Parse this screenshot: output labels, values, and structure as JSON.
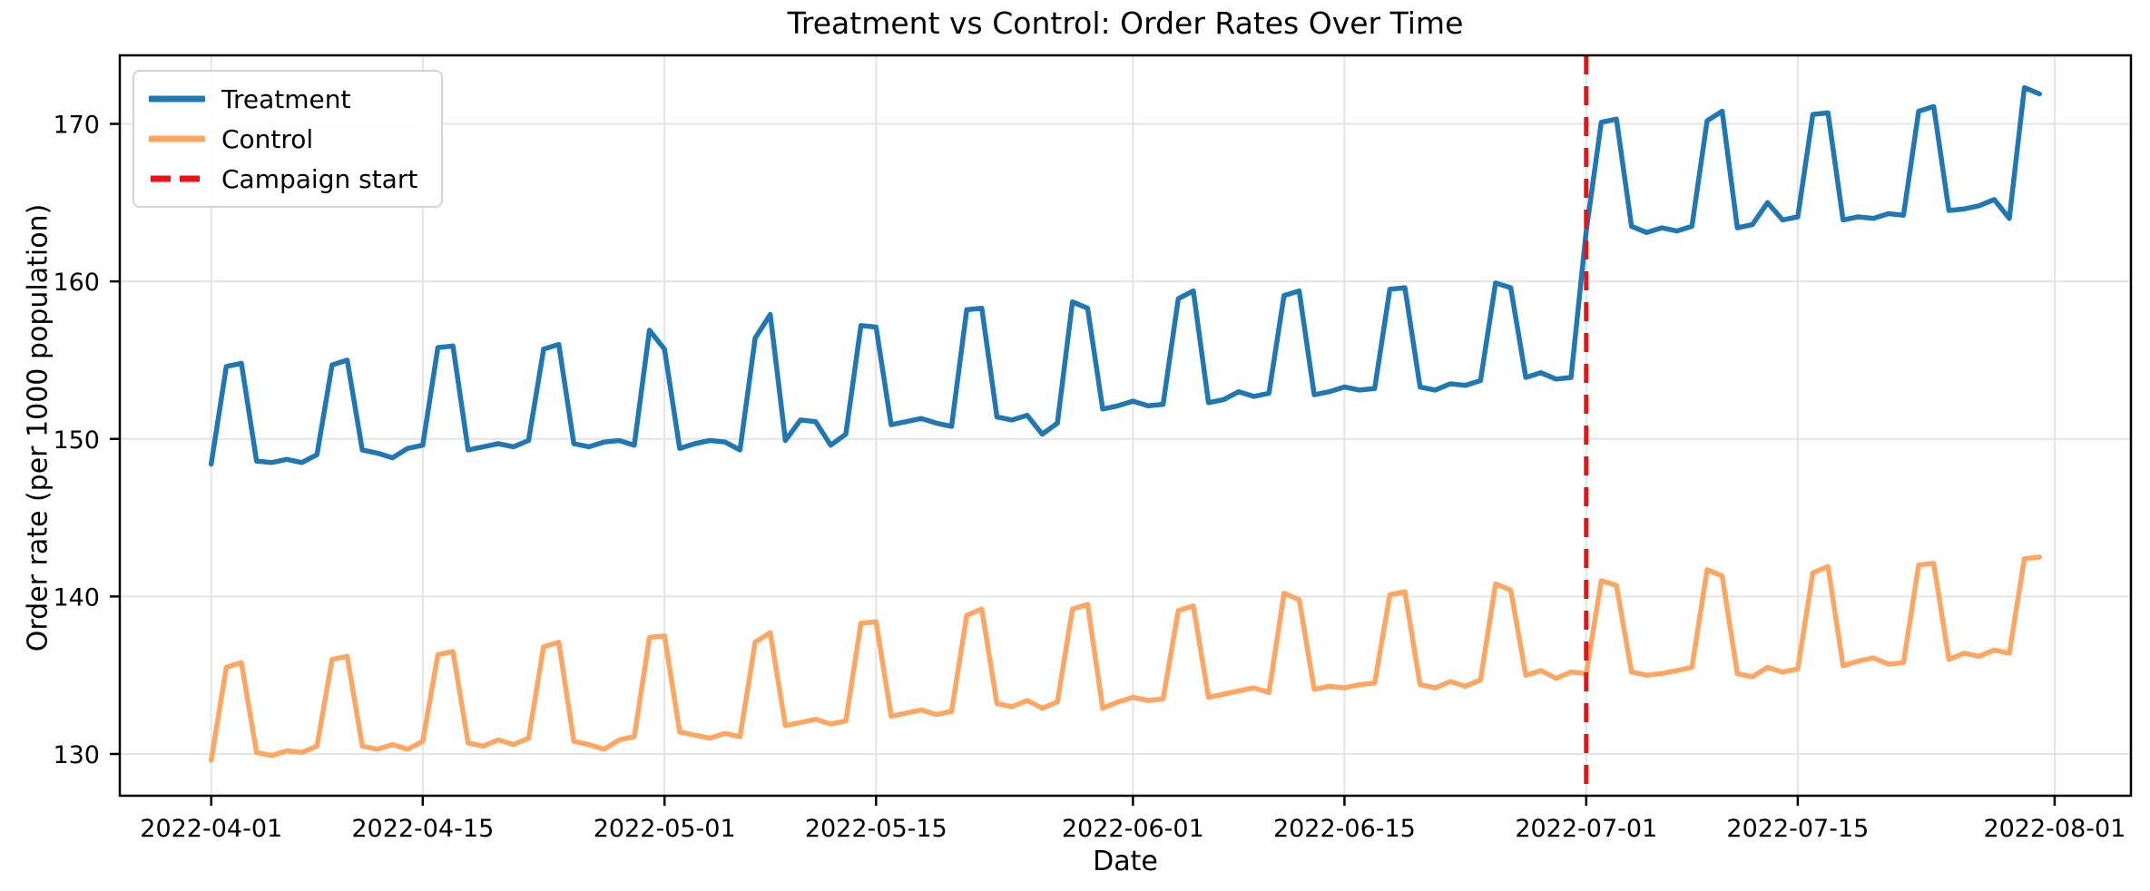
{
  "figure": {
    "background": "#ffffff"
  },
  "chart_data": {
    "type": "line",
    "title": "Treatment vs Control: Order Rates Over Time",
    "xlabel": "Date",
    "ylabel": "Order rate (per 1000 population)",
    "grid": true,
    "legend_position": "upper-left",
    "start_date": "2022-04-01",
    "x_unit": "days since 2022-04-01",
    "xlim_days": [
      -6.05,
      127.05
    ],
    "ylim": [
      127.35,
      174.35
    ],
    "y_ticks": [
      130,
      140,
      150,
      160,
      170
    ],
    "x_ticks": [
      {
        "day": 0,
        "label": "2022-04-01"
      },
      {
        "day": 14,
        "label": "2022-04-15"
      },
      {
        "day": 30,
        "label": "2022-05-01"
      },
      {
        "day": 44,
        "label": "2022-05-15"
      },
      {
        "day": 61,
        "label": "2022-06-01"
      },
      {
        "day": 75,
        "label": "2022-06-15"
      },
      {
        "day": 91,
        "label": "2022-07-01"
      },
      {
        "day": 105,
        "label": "2022-07-15"
      },
      {
        "day": 122,
        "label": "2022-08-01"
      }
    ],
    "series": [
      {
        "name": "Treatment",
        "color": "#1f77b4",
        "style": "solid",
        "values": [
          148.4,
          154.6,
          154.8,
          148.6,
          148.5,
          148.7,
          148.5,
          149.0,
          154.7,
          155.0,
          149.3,
          149.1,
          148.8,
          149.4,
          149.6,
          155.8,
          155.9,
          149.3,
          149.5,
          149.7,
          149.5,
          149.9,
          155.7,
          156.0,
          149.7,
          149.5,
          149.8,
          149.9,
          149.6,
          156.9,
          155.7,
          149.4,
          149.7,
          149.9,
          149.8,
          149.3,
          156.4,
          157.9,
          149.9,
          151.2,
          151.1,
          149.6,
          150.3,
          157.2,
          157.1,
          150.9,
          151.1,
          151.3,
          151.0,
          150.8,
          158.2,
          158.3,
          151.4,
          151.2,
          151.5,
          150.3,
          151.0,
          158.7,
          158.3,
          151.9,
          152.1,
          152.4,
          152.1,
          152.2,
          158.9,
          159.4,
          152.3,
          152.5,
          153.0,
          152.7,
          152.9,
          159.1,
          159.4,
          152.8,
          153.0,
          153.3,
          153.1,
          153.2,
          159.5,
          159.6,
          153.3,
          153.1,
          153.5,
          153.4,
          153.7,
          159.9,
          159.6,
          153.9,
          154.2,
          153.8,
          153.9,
          163.2,
          170.1,
          170.3,
          163.5,
          163.1,
          163.4,
          163.2,
          163.5,
          170.2,
          170.8,
          163.4,
          163.6,
          165.0,
          163.9,
          164.1,
          170.6,
          170.7,
          163.9,
          164.1,
          164.0,
          164.3,
          164.2,
          170.8,
          171.1,
          164.5,
          164.6,
          164.8,
          165.2,
          164.0,
          172.3,
          171.9
        ]
      },
      {
        "name": "Control",
        "color": "#fda662",
        "style": "solid",
        "values": [
          129.6,
          135.5,
          135.8,
          130.1,
          129.9,
          130.2,
          130.1,
          130.5,
          136.0,
          136.2,
          130.5,
          130.3,
          130.6,
          130.3,
          130.8,
          136.3,
          136.5,
          130.7,
          130.5,
          130.9,
          130.6,
          131.0,
          136.8,
          137.1,
          130.8,
          130.6,
          130.3,
          130.9,
          131.1,
          137.4,
          137.5,
          131.4,
          131.2,
          131.0,
          131.3,
          131.1,
          137.1,
          137.7,
          131.8,
          132.0,
          132.2,
          131.9,
          132.1,
          138.3,
          138.4,
          132.4,
          132.6,
          132.8,
          132.5,
          132.7,
          138.8,
          139.2,
          133.2,
          133.0,
          133.4,
          132.9,
          133.3,
          139.2,
          139.5,
          132.9,
          133.3,
          133.6,
          133.4,
          133.5,
          139.1,
          139.4,
          133.6,
          133.8,
          134.0,
          134.2,
          133.9,
          140.2,
          139.8,
          134.1,
          134.3,
          134.2,
          134.4,
          134.5,
          140.1,
          140.3,
          134.4,
          134.2,
          134.6,
          134.3,
          134.7,
          140.8,
          140.4,
          135.0,
          135.3,
          134.8,
          135.2,
          135.1,
          141.0,
          140.7,
          135.2,
          135.0,
          135.1,
          135.3,
          135.5,
          141.7,
          141.3,
          135.1,
          134.9,
          135.5,
          135.2,
          135.4,
          141.5,
          141.9,
          135.6,
          135.9,
          136.1,
          135.7,
          135.8,
          142.0,
          142.1,
          136.0,
          136.4,
          136.2,
          136.6,
          136.4,
          142.4,
          142.5
        ]
      }
    ],
    "annotations": [
      {
        "name": "Campaign start",
        "type": "vline",
        "day": 91,
        "date": "2022-07-01",
        "color": "#ee1012",
        "style": "dashed"
      }
    ]
  },
  "legend": {
    "items": [
      {
        "label": "Treatment",
        "color": "#1f77b4",
        "dash": false
      },
      {
        "label": "Control",
        "color": "#fda662",
        "dash": false
      },
      {
        "label": "Campaign start",
        "color": "#ee1012",
        "dash": true
      }
    ]
  },
  "style": {
    "grid_color": "#e4e4e4",
    "spine_color": "#000000",
    "tick_label_color": "#000000"
  }
}
